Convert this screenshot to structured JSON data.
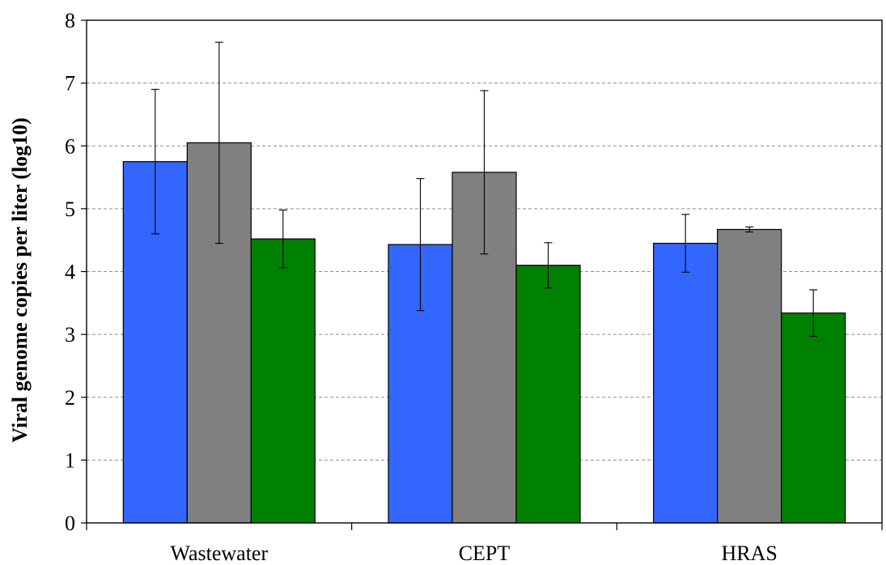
{
  "chart_data": {
    "type": "bar",
    "title": "",
    "xlabel": "",
    "ylabel": "Viral genome copies per liter (log10)",
    "ylim": [
      0,
      8
    ],
    "yticks": [
      0,
      1,
      2,
      3,
      4,
      5,
      6,
      7,
      8
    ],
    "grid": true,
    "legend": "none",
    "categories": [
      "Wastewater",
      "CEPT",
      "HRAS"
    ],
    "series": [
      {
        "color": "#3366ff",
        "values": [
          5.75,
          4.43,
          4.45
        ],
        "errors": [
          1.15,
          1.05,
          0.46
        ]
      },
      {
        "color": "#808080",
        "values": [
          6.05,
          5.58,
          4.67
        ],
        "errors": [
          1.6,
          1.3,
          0.04
        ]
      },
      {
        "color": "#008000",
        "values": [
          4.52,
          4.1,
          3.34
        ],
        "errors": [
          0.46,
          0.36,
          0.37
        ]
      }
    ]
  }
}
